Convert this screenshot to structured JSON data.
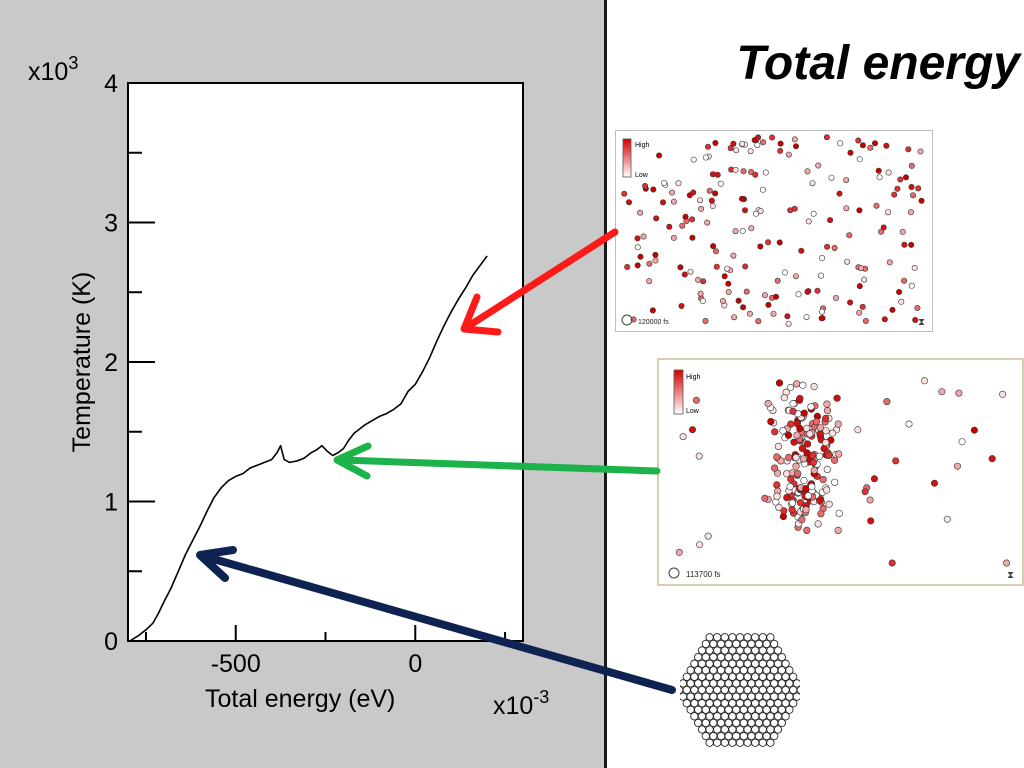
{
  "slide": {
    "title": "Total energy"
  },
  "chart_data": {
    "type": "line",
    "xlabel": "Total energy (eV)",
    "ylabel": "Temperature (K)",
    "x_multiplier": "x10",
    "x_multiplier_exp": "-3",
    "y_multiplier": "x10",
    "y_multiplier_exp": "3",
    "xlim": [
      -800,
      300
    ],
    "ylim": [
      0,
      4
    ],
    "x_ticks": [
      {
        "value": -500,
        "label": "-500"
      },
      {
        "value": 0,
        "label": "0"
      }
    ],
    "x_minor_ticks": [
      -750,
      -250,
      250
    ],
    "y_ticks": [
      {
        "value": 0,
        "label": "0"
      },
      {
        "value": 1,
        "label": "1"
      },
      {
        "value": 2,
        "label": "2"
      },
      {
        "value": 3,
        "label": "3"
      },
      {
        "value": 4,
        "label": "4"
      }
    ],
    "y_minor_ticks": [
      0.5,
      1.5,
      2.5,
      3.5
    ],
    "series": [
      {
        "color": "#000000",
        "x": [
          -795,
          -770,
          -750,
          -730,
          -715,
          -700,
          -680,
          -660,
          -640,
          -620,
          -600,
          -580,
          -560,
          -540,
          -520,
          -500,
          -480,
          -460,
          -440,
          -420,
          -400,
          -385,
          -375,
          -365,
          -350,
          -330,
          -310,
          -290,
          -275,
          -260,
          -245,
          -230,
          -215,
          -200,
          -185,
          -170,
          -155,
          -140,
          -120,
          -100,
          -80,
          -60,
          -40,
          -20,
          0,
          20,
          40,
          60,
          80,
          100,
          120,
          140,
          160,
          180,
          200
        ],
        "y": [
          0.0,
          0.04,
          0.08,
          0.13,
          0.2,
          0.28,
          0.38,
          0.5,
          0.62,
          0.72,
          0.82,
          0.93,
          1.03,
          1.1,
          1.15,
          1.18,
          1.2,
          1.24,
          1.26,
          1.28,
          1.3,
          1.35,
          1.4,
          1.3,
          1.28,
          1.29,
          1.31,
          1.35,
          1.37,
          1.4,
          1.36,
          1.33,
          1.35,
          1.38,
          1.44,
          1.49,
          1.52,
          1.55,
          1.58,
          1.61,
          1.63,
          1.66,
          1.7,
          1.79,
          1.84,
          1.93,
          2.03,
          2.15,
          2.26,
          2.36,
          2.45,
          2.53,
          2.62,
          2.69,
          2.76
        ]
      }
    ]
  },
  "snapshots": {
    "gas": {
      "legend_high": "High",
      "legend_low": "Low",
      "time": "120000 fs"
    },
    "liquid": {
      "legend_high": "High",
      "legend_low": "Low",
      "time": "113700 fs"
    }
  },
  "colors": {
    "arrow_gas": "#ff1a1a",
    "arrow_liquid": "#1cb34a",
    "arrow_solid": "#0f2352",
    "panel_bg": "#c9c9c9"
  }
}
